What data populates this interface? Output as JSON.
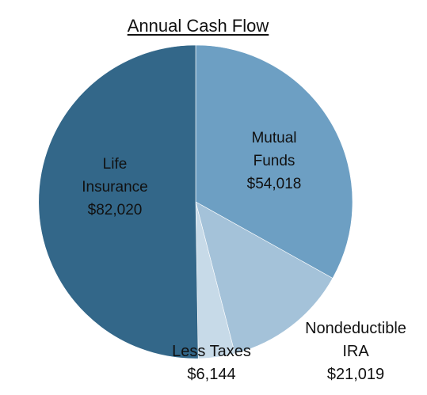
{
  "chart_data": {
    "type": "pie",
    "title": "Annual Cash Flow",
    "slices": [
      {
        "label_lines": [
          "Mutual",
          "Funds"
        ],
        "value_text": "$54,018",
        "value": 54018,
        "color": "#6d9fc3"
      },
      {
        "label_lines": [
          "Nondeductible",
          "IRA"
        ],
        "value_text": "$21,019",
        "value": 21019,
        "color": "#a4c2d9"
      },
      {
        "label_lines": [
          "Less Taxes"
        ],
        "value_text": "$6,144",
        "value": 6144,
        "color": "#c7dae8"
      },
      {
        "label_lines": [
          "Life",
          "Insurance"
        ],
        "value_text": "$82,020",
        "value": 82020,
        "color": "#336789"
      }
    ],
    "legend": "none",
    "grid": false
  }
}
